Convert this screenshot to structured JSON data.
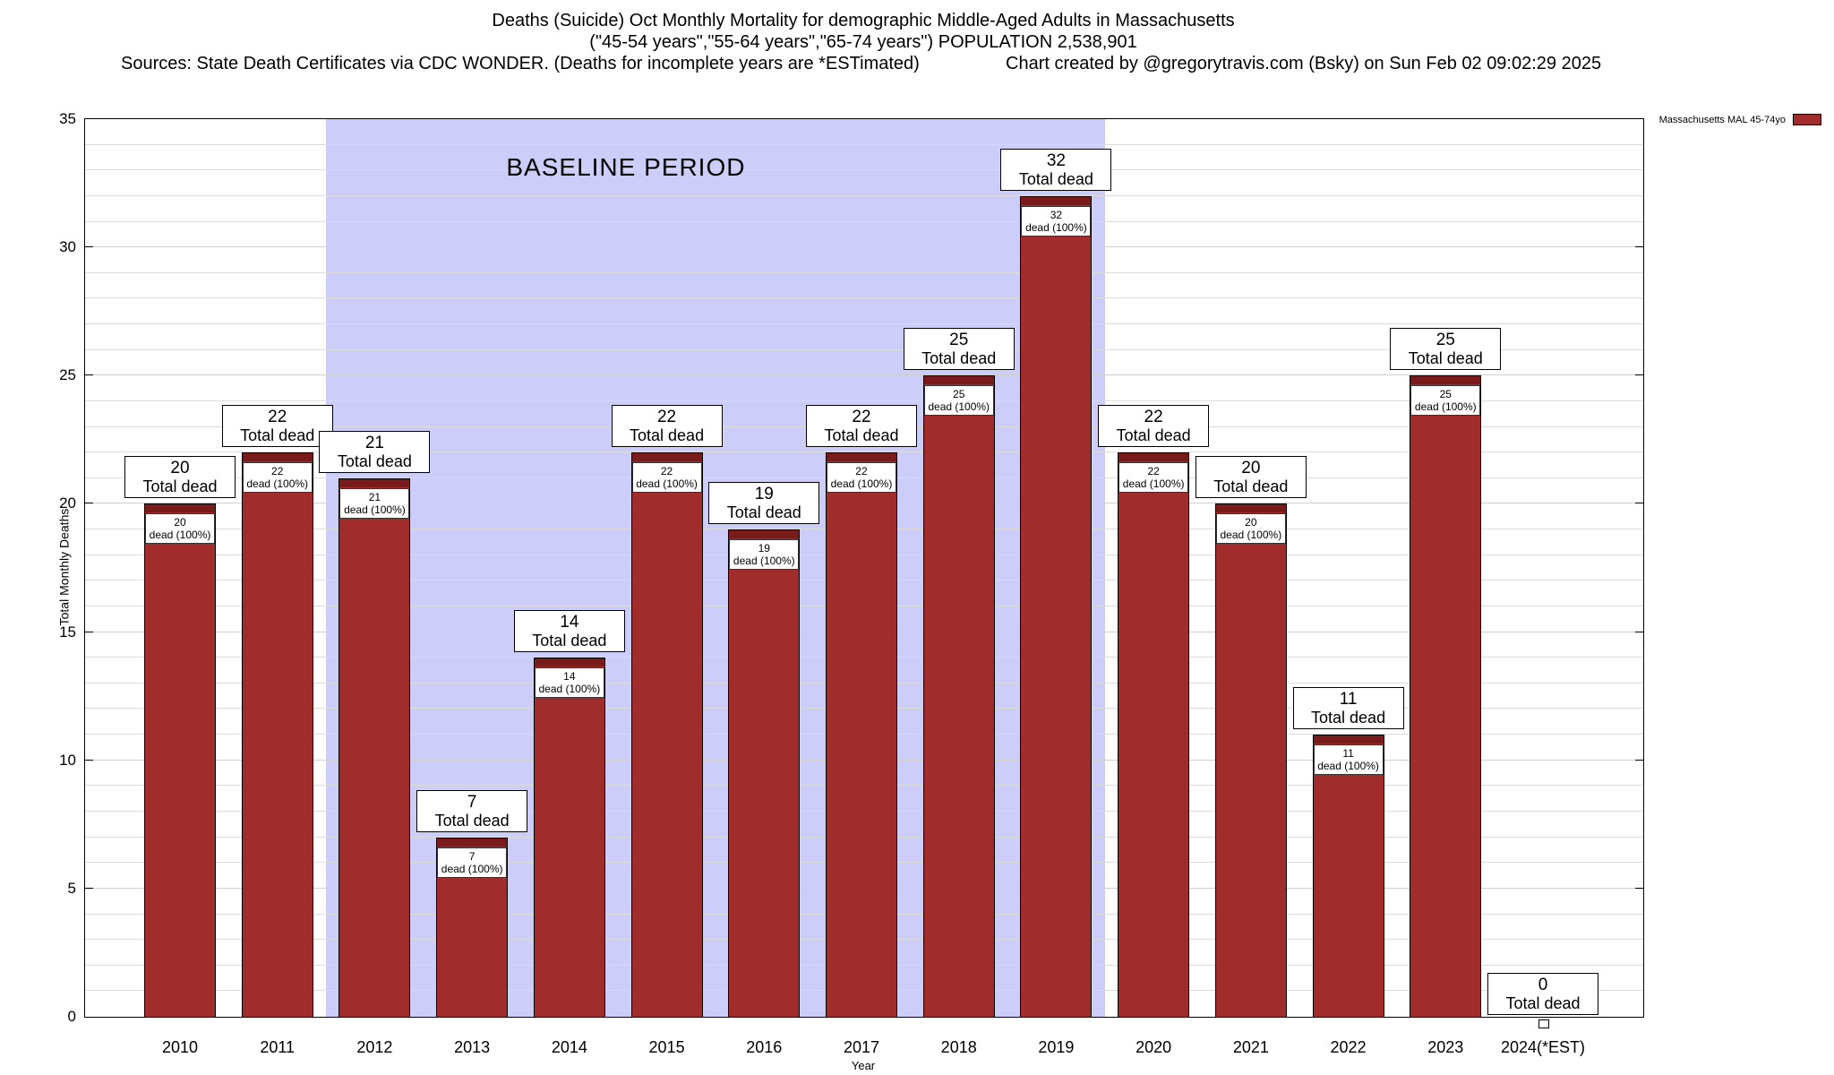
{
  "header": {
    "line1": "Deaths (Suicide) Oct Monthly Mortality for demographic Middle-Aged Adults in Massachusetts",
    "line2": "(\"45-54 years\",\"55-64 years\",\"65-74 years\") POPULATION 2,538,901",
    "line3_left": "Sources: State Death Certificates via CDC WONDER. (Deaths for incomplete years are *ESTimated)",
    "line3_right": "Chart created by @gregorytravis.com (Bsky) on Sun Feb 02 09:02:29 2025"
  },
  "axis": {
    "xlabel": "Year",
    "ylabel": "Total Monthly Deaths",
    "yticks": [
      0,
      5,
      10,
      15,
      20,
      25,
      30,
      35
    ]
  },
  "chart_data": {
    "type": "bar",
    "title": "Deaths (Suicide) Oct Monthly Mortality for demographic Middle-Aged Adults in Massachusetts",
    "subtitle": "(\"45-54 years\",\"55-64 years\",\"65-74 years\") POPULATION 2,538,901",
    "categories": [
      "2010",
      "2011",
      "2012",
      "2013",
      "2014",
      "2015",
      "2016",
      "2017",
      "2018",
      "2019",
      "2020",
      "2021",
      "2022",
      "2023",
      "2024(*EST)"
    ],
    "values": [
      20,
      22,
      21,
      7,
      14,
      22,
      19,
      22,
      25,
      32,
      22,
      20,
      11,
      25,
      0
    ],
    "series_name": "Massachusetts MAL 45-74yo",
    "xlabel": "Year",
    "ylabel": "Total Monthly Deaths",
    "ylim": [
      0,
      35
    ],
    "ytick_interval": 5,
    "minor_grid_interval": 1,
    "grid": true,
    "legend_position": "top-right",
    "bar_color": "#a02c2c",
    "bar_cap_color": "#791b1b",
    "baseline": {
      "label": "BASELINE PERIOD",
      "from_category": "2012",
      "to_category": "2019",
      "band_color": "#cccdf8"
    },
    "labels": {
      "total_suffix": "Total dead",
      "inner_suffix": "dead (100%)"
    }
  }
}
